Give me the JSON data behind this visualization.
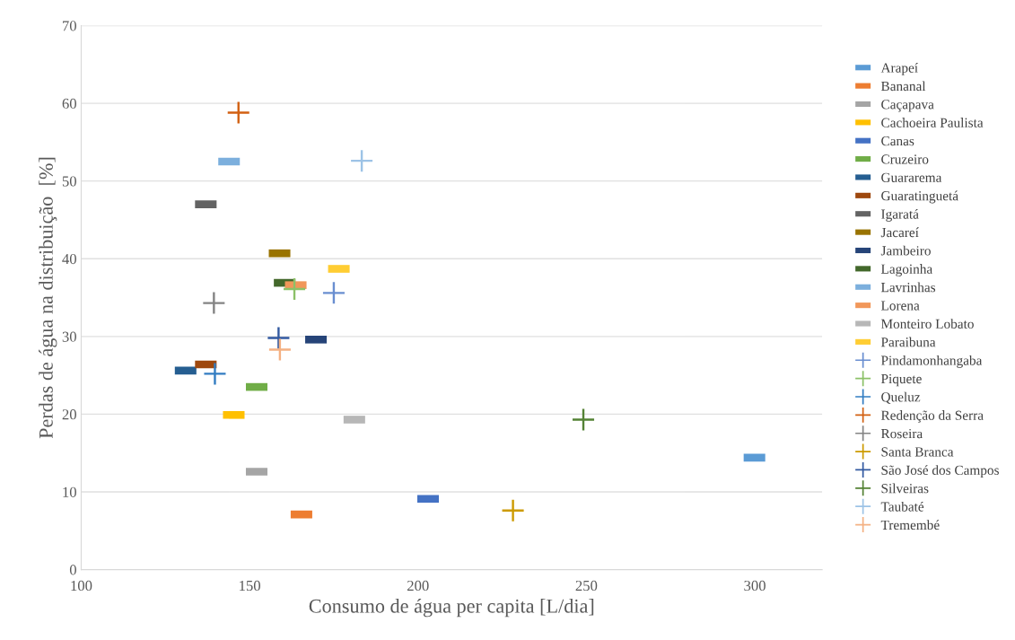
{
  "chart_data": {
    "type": "scatter",
    "xlabel": "Consumo de água per capita [L/dia]",
    "ylabel": "Perdas de água na distribuição  [%]",
    "xlim": [
      100,
      320
    ],
    "xticks": [
      100,
      150,
      200,
      250,
      300
    ],
    "ylim": [
      0,
      70
    ],
    "yticks": [
      0,
      10,
      20,
      30,
      40,
      50,
      60,
      70
    ],
    "grid": "y",
    "legend": "right",
    "series": [
      {
        "name": "Arapeí",
        "color": "#5b9bd5",
        "x": [
          299.9
        ],
        "values": [
          14.4
        ]
      },
      {
        "name": "Bananal",
        "color": "#ed7d31",
        "x": [
          165.4
        ],
        "values": [
          7.1
        ]
      },
      {
        "name": "Caçapava",
        "color": "#a5a5a5",
        "x": [
          152.1
        ],
        "values": [
          12.6
        ]
      },
      {
        "name": "Cachoeira Paulista",
        "color": "#ffc000",
        "x": [
          145.3
        ],
        "values": [
          19.9
        ]
      },
      {
        "name": "Canas",
        "color": "#4472c4",
        "x": [
          203.0
        ],
        "values": [
          9.1
        ]
      },
      {
        "name": "Cruzeiro",
        "color": "#70ad47",
        "x": [
          152.1
        ],
        "values": [
          23.5
        ]
      },
      {
        "name": "Guararema",
        "color": "#255e91",
        "x": [
          131.0
        ],
        "values": [
          25.6
        ]
      },
      {
        "name": "Guaratinguetá",
        "color": "#9e480e",
        "x": [
          137.0
        ],
        "values": [
          26.4
        ]
      },
      {
        "name": "Igaratá",
        "color": "#636363",
        "x": [
          137.0
        ],
        "values": [
          47.0
        ]
      },
      {
        "name": "Jacareí",
        "color": "#997300",
        "x": [
          158.9
        ],
        "values": [
          40.7
        ]
      },
      {
        "name": "Jambeiro",
        "color": "#264478",
        "x": [
          169.7
        ],
        "values": [
          29.6
        ]
      },
      {
        "name": "Lagoinha",
        "color": "#43682b",
        "x": [
          160.4
        ],
        "values": [
          36.9
        ]
      },
      {
        "name": "Lavrinhas",
        "color": "#7cafdd",
        "x": [
          143.9
        ],
        "values": [
          52.5
        ]
      },
      {
        "name": "Lorena",
        "color": "#f1975a",
        "x": [
          163.7
        ],
        "values": [
          36.6
        ]
      },
      {
        "name": "Monteiro Lobato",
        "color": "#b7b7b7",
        "x": [
          181.1
        ],
        "values": [
          19.3
        ]
      },
      {
        "name": "Paraibuna",
        "color": "#ffcd33",
        "x": [
          176.5
        ],
        "values": [
          38.7
        ]
      },
      {
        "name": "Pindamonhangaba",
        "color": "#698ed0",
        "marker": "cross",
        "x": [
          175.0
        ],
        "values": [
          35.6
        ]
      },
      {
        "name": "Piquete",
        "color": "#8cc168",
        "marker": "cross",
        "x": [
          163.3
        ],
        "values": [
          36.1
        ]
      },
      {
        "name": "Queluz",
        "color": "#327dc2",
        "marker": "cross",
        "x": [
          139.7
        ],
        "values": [
          25.2
        ]
      },
      {
        "name": "Redenção da Serra",
        "color": "#d26012",
        "marker": "cross",
        "x": [
          146.7
        ],
        "values": [
          58.8
        ]
      },
      {
        "name": "Roseira",
        "color": "#848484",
        "marker": "cross",
        "x": [
          139.4
        ],
        "values": [
          34.3
        ]
      },
      {
        "name": "Santa Branca",
        "color": "#cc9a00",
        "marker": "cross",
        "x": [
          228.2
        ],
        "values": [
          7.6
        ]
      },
      {
        "name": "São José dos Campos",
        "color": "#335aa1",
        "marker": "cross",
        "x": [
          158.6
        ],
        "values": [
          29.8
        ]
      },
      {
        "name": "Silveiras",
        "color": "#548235",
        "marker": "cross",
        "x": [
          249.1
        ],
        "values": [
          19.3
        ]
      },
      {
        "name": "Taubaté",
        "color": "#9dc3e6",
        "marker": "cross",
        "x": [
          183.3
        ],
        "values": [
          52.6
        ]
      },
      {
        "name": "Tremembé",
        "color": "#f4b183",
        "marker": "cross",
        "x": [
          159.0
        ],
        "values": [
          28.3
        ]
      }
    ]
  }
}
